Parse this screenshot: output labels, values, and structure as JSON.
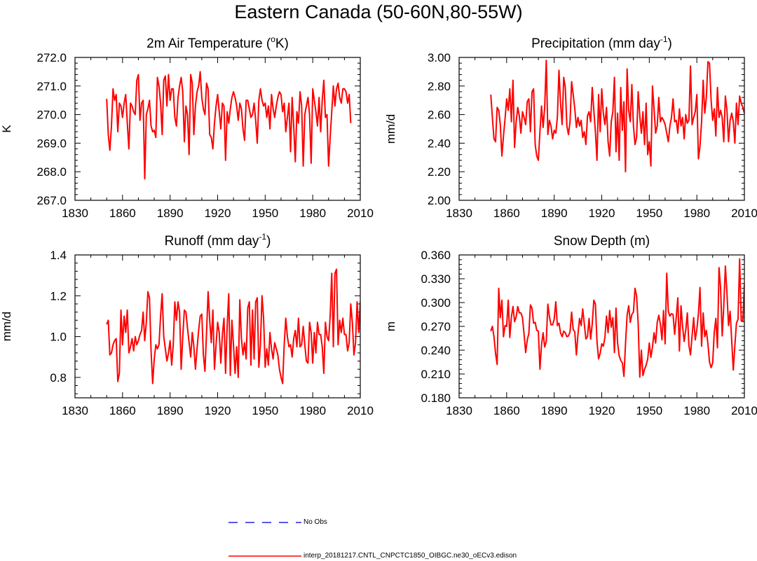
{
  "figure": {
    "title": "Eastern Canada (50-60N,80-55W)",
    "legend": [
      {
        "label": "No Obs",
        "color": "#2020e0",
        "style": "dashed"
      },
      {
        "label": "interp_20181217.CNTL_CNPCTC1850_OIBGC.ne30_oECv3.edison",
        "color": "#ff0000",
        "style": "solid"
      }
    ]
  },
  "chart_data": [
    {
      "type": "line",
      "title_main": "2m Air Temperature (",
      "title_sup": "o",
      "title_tail": "K)",
      "ylabel": "K",
      "xlim": [
        1830,
        2010
      ],
      "ylim": [
        267.0,
        272.0
      ],
      "xticks": [
        1830,
        1860,
        1890,
        1920,
        1950,
        1980,
        2010
      ],
      "yticks": [
        267.0,
        268.0,
        269.0,
        270.0,
        271.0,
        272.0
      ],
      "ytick_labels": [
        "267.0",
        "268.0",
        "269.0",
        "270.0",
        "271.0",
        "272.0"
      ],
      "series": [
        {
          "name": "interp_20181217.CNTL_CNPCTC1850_OIBGC.ne30_oECv3.edison",
          "color": "#ff0000",
          "x_start": 1850,
          "values": [
            270.55,
            269.3,
            268.75,
            269.6,
            270.9,
            270.5,
            270.7,
            269.4,
            270.4,
            270.3,
            269.9,
            270.4,
            270.7,
            269.7,
            268.8,
            270.4,
            270.3,
            270.1,
            270.0,
            271.2,
            271.4,
            269.8,
            270.4,
            270.5,
            267.75,
            270.0,
            270.2,
            270.5,
            269.6,
            269.4,
            269.45,
            269.2,
            271.3,
            271.0,
            270.4,
            269.3,
            271.2,
            271.35,
            270.3,
            271.4,
            270.5,
            270.9,
            270.9,
            269.9,
            269.6,
            270.6,
            271.0,
            271.3,
            270.8,
            269.05,
            270.3,
            270.0,
            268.6,
            271.4,
            271.1,
            269.3,
            270.3,
            270.8,
            271.0,
            271.5,
            270.6,
            270.2,
            270.0,
            271.1,
            270.9,
            269.3,
            269.2,
            268.8,
            269.7,
            270.3,
            270.7,
            270.1,
            269.5,
            270.4,
            270.3,
            268.4,
            270.1,
            269.7,
            270.2,
            270.6,
            270.8,
            270.6,
            270.3,
            269.8,
            270.4,
            270.2,
            269.5,
            269.1,
            270.5,
            270.5,
            270.2,
            269.9,
            270.0,
            270.4,
            269.8,
            269.0,
            270.5,
            270.9,
            270.5,
            270.3,
            270.4,
            269.9,
            270.3,
            269.5,
            270.7,
            270.2,
            269.9,
            270.3,
            270.6,
            270.8,
            270.7,
            270.1,
            270.4,
            269.4,
            269.9,
            270.4,
            268.7,
            270.6,
            269.6,
            268.35,
            270.1,
            269.7,
            270.8,
            270.3,
            268.2,
            270.0,
            270.3,
            270.6,
            270.0,
            268.3,
            270.9,
            270.5,
            270.1,
            269.6,
            270.6,
            269.4,
            270.5,
            271.2,
            269.9,
            270.0,
            268.2,
            269.2,
            270.1,
            271.0,
            270.3,
            270.9,
            271.1,
            270.6,
            270.4,
            270.9,
            270.9,
            270.8,
            270.4,
            270.7,
            269.7
          ]
        }
      ]
    },
    {
      "type": "line",
      "title_main": "Precipitation (mm day",
      "title_sup": "-1",
      "title_tail": ")",
      "ylabel": "mm/d",
      "xlim": [
        1830,
        2010
      ],
      "ylim": [
        2.0,
        3.0
      ],
      "xticks": [
        1830,
        1860,
        1890,
        1920,
        1950,
        1980,
        2010
      ],
      "yticks": [
        2.0,
        2.2,
        2.4,
        2.6,
        2.8,
        3.0
      ],
      "ytick_labels": [
        "2.00",
        "2.20",
        "2.40",
        "2.60",
        "2.80",
        "3.00"
      ],
      "series": [
        {
          "name": "interp_20181217.CNTL_CNPCTC1850_OIBGC.ne30_oECv3.edison",
          "color": "#ff0000",
          "x_start": 1850,
          "values": [
            2.74,
            2.58,
            2.43,
            2.41,
            2.65,
            2.63,
            2.53,
            2.31,
            2.45,
            2.57,
            2.71,
            2.63,
            2.78,
            2.55,
            2.84,
            2.37,
            2.55,
            2.65,
            2.59,
            2.47,
            2.62,
            2.58,
            2.53,
            2.69,
            2.71,
            2.48,
            2.76,
            2.78,
            2.39,
            2.31,
            2.28,
            2.48,
            2.66,
            2.51,
            2.65,
            2.98,
            2.46,
            2.56,
            2.52,
            2.43,
            2.49,
            2.47,
            2.58,
            2.91,
            2.68,
            2.53,
            2.86,
            2.79,
            2.52,
            2.46,
            2.55,
            2.83,
            2.74,
            2.64,
            2.51,
            2.58,
            2.52,
            2.56,
            2.44,
            2.48,
            2.39,
            2.59,
            2.62,
            2.55,
            2.79,
            2.63,
            2.48,
            2.28,
            2.74,
            2.48,
            2.78,
            2.61,
            2.53,
            2.65,
            2.41,
            2.31,
            2.55,
            2.62,
            2.86,
            2.34,
            2.61,
            2.28,
            2.79,
            2.49,
            2.69,
            2.2,
            2.92,
            2.63,
            2.55,
            2.81,
            2.52,
            2.39,
            2.44,
            2.76,
            2.59,
            2.47,
            2.62,
            2.39,
            2.68,
            2.32,
            2.41,
            2.24,
            2.8,
            2.64,
            2.47,
            2.52,
            2.72,
            2.55,
            2.58,
            2.56,
            2.53,
            2.47,
            2.41,
            2.52,
            2.58,
            2.71,
            2.55,
            2.56,
            2.47,
            2.64,
            2.52,
            2.58,
            2.43,
            2.6,
            2.54,
            2.56,
            2.94,
            2.53,
            2.58,
            2.62,
            2.74,
            2.29,
            2.38,
            2.55,
            2.84,
            2.61,
            2.72,
            2.97,
            2.96,
            2.7,
            2.56,
            2.64,
            2.45,
            2.79,
            2.58,
            2.63,
            2.58,
            2.41,
            2.73,
            2.63,
            2.41,
            2.56,
            2.61,
            2.55,
            2.4,
            2.68,
            2.53,
            2.73,
            2.68,
            2.65,
            2.61,
            2.73,
            2.84,
            2.76
          ]
        }
      ]
    },
    {
      "type": "line",
      "title_main": "Runoff (mm day",
      "title_sup": "-1",
      "title_tail": ")",
      "ylabel": "mm/d",
      "xlim": [
        1830,
        2010
      ],
      "ylim": [
        0.7,
        1.4
      ],
      "xticks": [
        1830,
        1860,
        1890,
        1920,
        1950,
        1980,
        2010
      ],
      "yticks": [
        0.8,
        1.0,
        1.2,
        1.4
      ],
      "ytick_labels": [
        "0.8",
        "1.0",
        "1.2",
        "1.4"
      ],
      "series": [
        {
          "name": "interp_20181217.CNTL_CNPCTC1850_OIBGC.ne30_oECv3.edison",
          "color": "#ff0000",
          "x_start": 1850,
          "values": [
            1.06,
            1.08,
            0.91,
            0.92,
            0.96,
            0.98,
            0.99,
            0.78,
            0.82,
            1.13,
            0.96,
            1.1,
            1.02,
            1.13,
            0.92,
            0.95,
            0.99,
            0.93,
            1.0,
            0.96,
            0.98,
            1.01,
            1.03,
            1.12,
            0.98,
            1.07,
            1.22,
            1.19,
            0.93,
            0.77,
            0.89,
            0.96,
            0.94,
            0.96,
            1.1,
            1.21,
            1.0,
            0.94,
            0.88,
            0.92,
            0.98,
            0.86,
            0.96,
            1.17,
            1.08,
            1.17,
            1.12,
            0.84,
            1.0,
            1.13,
            1.12,
            1.04,
            0.97,
            0.9,
            1.02,
            0.95,
            0.84,
            0.94,
            1.03,
            1.1,
            1.11,
            0.91,
            0.83,
            1.02,
            1.22,
            1.08,
            0.97,
            1.13,
            0.84,
            0.96,
            1.07,
            1.02,
            0.87,
            1.01,
            1.09,
            0.82,
            1.05,
            1.21,
            0.81,
            1.08,
            0.96,
            0.82,
            0.95,
            0.8,
            1.18,
            0.99,
            0.91,
            0.97,
            0.89,
            1.14,
            1.17,
            0.86,
            1.13,
            0.89,
            1.17,
            1.19,
            0.85,
            0.96,
            1.2,
            1.09,
            0.85,
            0.94,
            0.86,
            1.02,
            0.94,
            0.89,
            0.97,
            0.94,
            0.91,
            0.84,
            0.8,
            0.77,
            0.96,
            1.09,
            1.0,
            0.95,
            0.96,
            0.9,
            0.99,
            1.03,
            0.95,
            1.09,
            0.95,
            0.96,
            1.05,
            0.96,
            0.88,
            0.87,
            1.07,
            1.02,
            0.87,
            1.02,
            0.92,
            1.07,
            1.01,
            1.01,
            0.95,
            0.82,
            1.07,
            1.0,
            0.98,
            1.1,
            1.31,
            0.95,
            1.31,
            1.33,
            0.96,
            1.08,
            1.02,
            1.09,
            1.01,
            1.01,
            0.93,
            0.97,
            1.16,
            1.07,
            0.91,
            0.97,
            1.17,
            1.02,
            1.17,
            0.97,
            1.14,
            0.94,
            1.12,
            0.92,
            1.18,
            1.17
          ]
        }
      ]
    },
    {
      "type": "line",
      "title_main": "Snow Depth (m)",
      "title_sup": "",
      "title_tail": "",
      "ylabel": "m",
      "xlim": [
        1830,
        2010
      ],
      "ylim": [
        0.18,
        0.36
      ],
      "xticks": [
        1830,
        1860,
        1890,
        1920,
        1950,
        1980,
        2010
      ],
      "yticks": [
        0.18,
        0.21,
        0.24,
        0.27,
        0.3,
        0.33,
        0.36
      ],
      "ytick_labels": [
        "0.180",
        "0.210",
        "0.240",
        "0.270",
        "0.300",
        "0.330",
        "0.360"
      ],
      "series": [
        {
          "name": "interp_20181217.CNTL_CNPCTC1850_OIBGC.ne30_oECv3.edison",
          "color": "#ff0000",
          "x_start": 1850,
          "values": [
            0.264,
            0.27,
            0.257,
            0.236,
            0.222,
            0.318,
            0.281,
            0.303,
            0.257,
            0.271,
            0.27,
            0.303,
            0.256,
            0.282,
            0.295,
            0.276,
            0.282,
            0.295,
            0.287,
            0.287,
            0.281,
            0.26,
            0.237,
            0.253,
            0.261,
            0.297,
            0.293,
            0.274,
            0.275,
            0.265,
            0.264,
            0.216,
            0.247,
            0.262,
            0.244,
            0.251,
            0.298,
            0.282,
            0.272,
            0.272,
            0.279,
            0.301,
            0.271,
            0.274,
            0.262,
            0.257,
            0.264,
            0.262,
            0.257,
            0.258,
            0.263,
            0.288,
            0.266,
            0.263,
            0.234,
            0.26,
            0.28,
            0.271,
            0.292,
            0.273,
            0.254,
            0.257,
            0.28,
            0.254,
            0.273,
            0.303,
            0.298,
            0.251,
            0.229,
            0.236,
            0.248,
            0.245,
            0.256,
            0.283,
            0.262,
            0.29,
            0.269,
            0.281,
            0.237,
            0.293,
            0.249,
            0.233,
            0.227,
            0.224,
            0.207,
            0.248,
            0.284,
            0.296,
            0.275,
            0.285,
            0.288,
            0.318,
            0.308,
            0.273,
            0.206,
            0.24,
            0.208,
            0.216,
            0.221,
            0.229,
            0.249,
            0.231,
            0.244,
            0.262,
            0.249,
            0.275,
            0.284,
            0.273,
            0.253,
            0.29,
            0.248,
            0.337,
            0.289,
            0.283,
            0.286,
            0.285,
            0.26,
            0.281,
            0.306,
            0.239,
            0.296,
            0.27,
            0.251,
            0.265,
            0.287,
            0.246,
            0.234,
            0.258,
            0.281,
            0.253,
            0.266,
            0.286,
            0.319,
            0.245,
            0.287,
            0.257,
            0.265,
            0.248,
            0.225,
            0.218,
            0.224,
            0.263,
            0.28,
            0.243,
            0.344,
            0.318,
            0.258,
            0.296,
            0.346,
            0.312,
            0.271,
            0.289,
            0.252,
            0.215,
            0.246,
            0.274,
            0.279,
            0.355,
            0.277,
            0.277,
            0.323,
            0.27,
            0.262,
            0.268,
            0.231,
            0.198,
            0.254,
            0.286,
            0.293,
            0.323,
            0.24,
            0.25,
            0.263,
            0.27,
            0.246,
            0.273,
            0.249,
            0.268,
            0.309,
            0.279,
            0.281,
            0.263,
            0.227,
            0.28
          ]
        }
      ]
    }
  ]
}
